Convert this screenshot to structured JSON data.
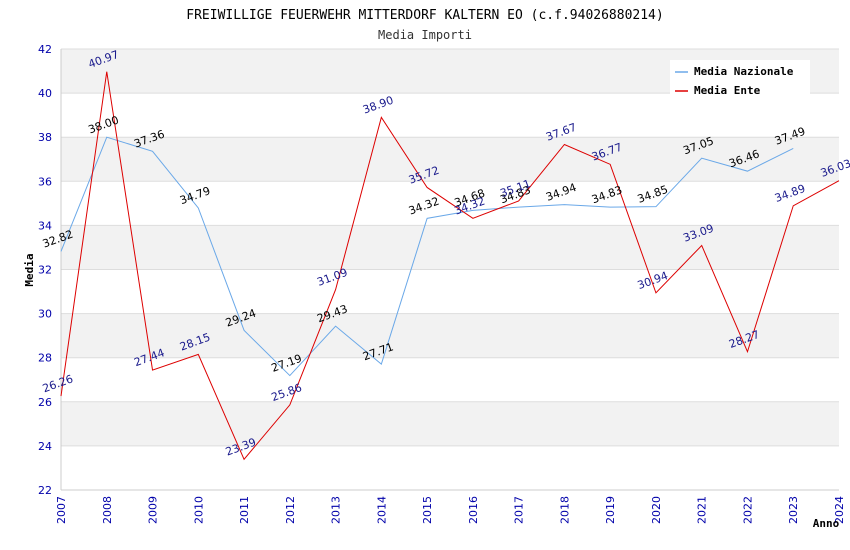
{
  "chart_data": {
    "type": "line",
    "title": "FREIWILLIGE FEUERWEHR MITTERDORF KALTERN EO (c.f.94026880214)",
    "subtitle": "Media Importi",
    "xlabel": "Anno",
    "ylabel": "Media",
    "ylim": [
      22,
      42
    ],
    "yticks": [
      22,
      24,
      26,
      28,
      30,
      32,
      34,
      36,
      38,
      40,
      42
    ],
    "x": [
      2007,
      2008,
      2009,
      2010,
      2011,
      2012,
      2013,
      2014,
      2015,
      2016,
      2017,
      2018,
      2019,
      2020,
      2021,
      2022,
      2023,
      2024
    ],
    "grid": true,
    "legend_position": "top-right",
    "series": [
      {
        "name": "Media Nazionale",
        "color": "#6aa8e8",
        "label_color": "#000000",
        "values": [
          32.82,
          38.0,
          37.36,
          34.79,
          29.24,
          27.19,
          29.43,
          27.71,
          34.32,
          34.68,
          34.83,
          34.94,
          34.83,
          34.85,
          37.05,
          36.46,
          37.49,
          null
        ],
        "labels": [
          "32.82",
          "38.00",
          "37.36",
          "34.79",
          "29.24",
          "27.19",
          "29.43",
          "27.71",
          "34.32",
          "34.68",
          "34.83",
          "34.94",
          "34.83",
          "34.85",
          "37.05",
          "36.46",
          "37.49",
          ""
        ]
      },
      {
        "name": "Media Ente",
        "color": "#dd0000",
        "label_color": "#1a1a8c",
        "values": [
          26.26,
          40.97,
          27.44,
          28.15,
          23.39,
          25.86,
          31.09,
          38.9,
          35.72,
          34.32,
          35.11,
          37.67,
          36.77,
          30.94,
          33.09,
          28.27,
          34.89,
          36.03
        ],
        "labels": [
          "26.26",
          "40.97",
          "27.44",
          "28.15",
          "23.39",
          "25.86",
          "31.09",
          "38.90",
          "35.72",
          "34.32",
          "35.11",
          "37.67",
          "36.77",
          "30.94",
          "33.09",
          "28.27",
          "34.89",
          "36.03"
        ]
      }
    ]
  }
}
